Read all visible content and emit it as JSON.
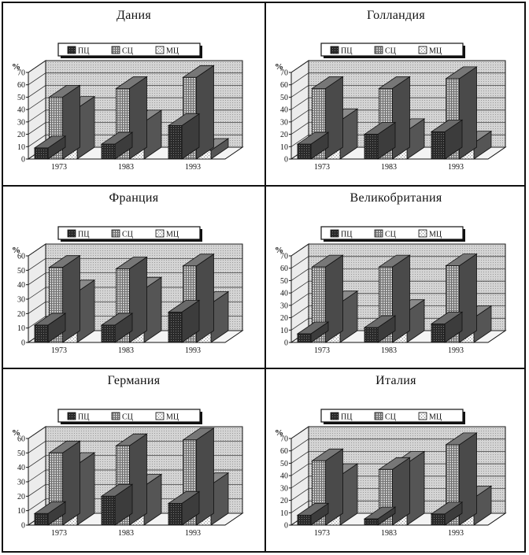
{
  "legend_labels": [
    "ПЦ",
    "СЦ",
    "МЦ"
  ],
  "chart_data": [
    {
      "type": "bar",
      "title": "Дания",
      "ylabel": "%",
      "ylim": [
        0,
        70
      ],
      "yticks": [
        0,
        10,
        20,
        30,
        40,
        50,
        60,
        70
      ],
      "categories": [
        "1973",
        "1983",
        "1993"
      ],
      "series": [
        {
          "name": "ПЦ",
          "values": [
            9,
            12,
            27
          ]
        },
        {
          "name": "СЦ",
          "values": [
            50,
            57,
            66
          ]
        },
        {
          "name": "МЦ",
          "values": [
            41,
            30,
            7
          ]
        }
      ]
    },
    {
      "type": "bar",
      "title": "Голландия",
      "ylabel": "%",
      "ylim": [
        0,
        70
      ],
      "yticks": [
        0,
        10,
        20,
        30,
        40,
        50,
        60,
        70
      ],
      "categories": [
        "1973",
        "1983",
        "1993"
      ],
      "series": [
        {
          "name": "ПЦ",
          "values": [
            12,
            20,
            22
          ]
        },
        {
          "name": "СЦ",
          "values": [
            57,
            57,
            65
          ]
        },
        {
          "name": "МЦ",
          "values": [
            31,
            23,
            13
          ]
        }
      ]
    },
    {
      "type": "bar",
      "title": "Франция",
      "ylabel": "%",
      "ylim": [
        0,
        60
      ],
      "yticks": [
        0,
        10,
        20,
        30,
        40,
        50,
        60
      ],
      "categories": [
        "1973",
        "1983",
        "1993"
      ],
      "series": [
        {
          "name": "ПЦ",
          "values": [
            12,
            12,
            21
          ]
        },
        {
          "name": "СЦ",
          "values": [
            52,
            51,
            53
          ]
        },
        {
          "name": "МЦ",
          "values": [
            35,
            37,
            27
          ]
        }
      ]
    },
    {
      "type": "bar",
      "title": "Великобритания",
      "ylabel": "%",
      "ylim": [
        0,
        70
      ],
      "yticks": [
        0,
        10,
        20,
        30,
        40,
        50,
        60,
        70
      ],
      "categories": [
        "1973",
        "1983",
        "1993"
      ],
      "series": [
        {
          "name": "ПЦ",
          "values": [
            7,
            12,
            15
          ]
        },
        {
          "name": "СЦ",
          "values": [
            61,
            61,
            62
          ]
        },
        {
          "name": "МЦ",
          "values": [
            32,
            25,
            20
          ]
        }
      ]
    },
    {
      "type": "bar",
      "title": "Германия",
      "ylabel": "%",
      "ylim": [
        0,
        60
      ],
      "yticks": [
        0,
        10,
        20,
        30,
        40,
        50,
        60
      ],
      "categories": [
        "1973",
        "1983",
        "1993"
      ],
      "series": [
        {
          "name": "ПЦ",
          "values": [
            8,
            20,
            15
          ]
        },
        {
          "name": "СЦ",
          "values": [
            50,
            55,
            59
          ]
        },
        {
          "name": "МЦ",
          "values": [
            42,
            27,
            28
          ]
        }
      ]
    },
    {
      "type": "bar",
      "title": "Италия",
      "ylabel": "%",
      "ylim": [
        0,
        70
      ],
      "yticks": [
        0,
        10,
        20,
        30,
        40,
        50,
        60,
        70
      ],
      "categories": [
        "1973",
        "1983",
        "1993"
      ],
      "series": [
        {
          "name": "ПЦ",
          "values": [
            8,
            5,
            9
          ]
        },
        {
          "name": "СЦ",
          "values": [
            52,
            45,
            65
          ]
        },
        {
          "name": "МЦ",
          "values": [
            40,
            50,
            22
          ]
        }
      ]
    }
  ]
}
